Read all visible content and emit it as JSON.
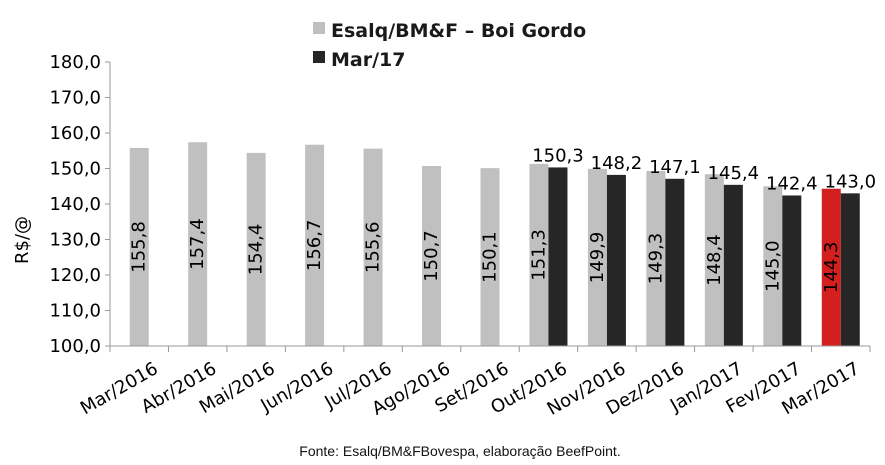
{
  "chart_data": {
    "type": "bar",
    "categories": [
      "Mar/2016",
      "Abr/2016",
      "Mai/2016",
      "Jun/2016",
      "Jul/2016",
      "Ago/2016",
      "Set/2016",
      "Out/2016",
      "Nov/2016",
      "Dez/2016",
      "Jan/2017",
      "Fev/2017",
      "Mar/2017"
    ],
    "series": [
      {
        "name": "Esalq/BM&F – Boi Gordo",
        "color": "#c0c0c0",
        "values": [
          155.8,
          157.4,
          154.4,
          156.7,
          155.6,
          150.7,
          150.1,
          151.3,
          149.9,
          149.3,
          148.4,
          145.0,
          144.3
        ],
        "labels": [
          "155,8",
          "157,4",
          "154,4",
          "156,7",
          "155,6",
          "150,7",
          "150,1",
          "151,3",
          "149,9",
          "149,3",
          "148,4",
          "145,0",
          "144,3"
        ],
        "highlight": {
          "index": 12,
          "color": "#d41f1f"
        }
      },
      {
        "name": "Mar/17",
        "color": "#262626",
        "values": [
          null,
          null,
          null,
          null,
          null,
          null,
          null,
          150.3,
          148.2,
          147.1,
          145.4,
          142.4,
          143.0
        ],
        "labels": [
          null,
          null,
          null,
          null,
          null,
          null,
          null,
          "150,3",
          "148,2",
          "147,1",
          "145,4",
          "142,4",
          "143,0"
        ]
      }
    ],
    "ylabel": "R$/@",
    "xlabel": "",
    "ylim": [
      100,
      180
    ],
    "yticks": [
      "100,0",
      "110,0",
      "120,0",
      "130,0",
      "140,0",
      "150,0",
      "160,0",
      "170,0",
      "180,0"
    ],
    "grid": false,
    "legend": "top-center"
  },
  "footer": {
    "source": "Fonte: Esalq/BM&FBovespa, elaboração BeefPoint."
  }
}
